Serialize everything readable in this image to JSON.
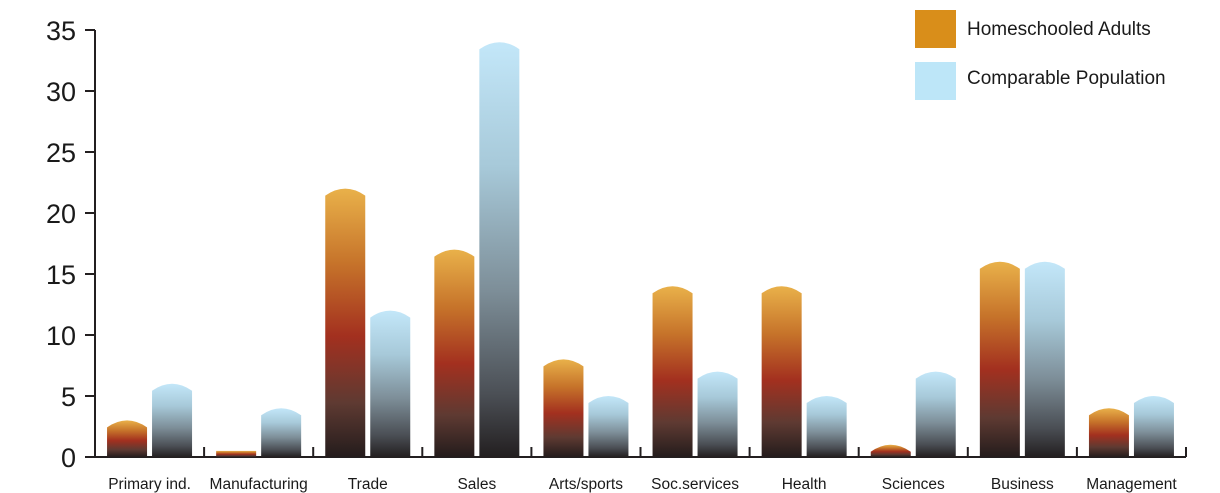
{
  "chart_data": {
    "type": "bar",
    "categories": [
      "Primary ind.",
      "Manufacturing",
      "Trade",
      "Sales",
      "Arts/sports",
      "Soc.services",
      "Health",
      "Sciences",
      "Business",
      "Management"
    ],
    "series": [
      {
        "name": "Homeschooled Adults",
        "values": [
          3,
          0.5,
          22,
          17,
          8,
          14,
          14,
          1,
          16,
          4
        ],
        "color": "#d98e1a"
      },
      {
        "name": "Comparable Population",
        "values": [
          6,
          4,
          12,
          34,
          5,
          7,
          5,
          7,
          16,
          5
        ],
        "color": "#bde6f8"
      }
    ],
    "yticks": [
      "0",
      "5",
      "10",
      "15",
      "20",
      "25",
      "30",
      "35"
    ],
    "ylim": [
      0,
      35
    ],
    "grid": false,
    "legend_position": "top-right"
  }
}
